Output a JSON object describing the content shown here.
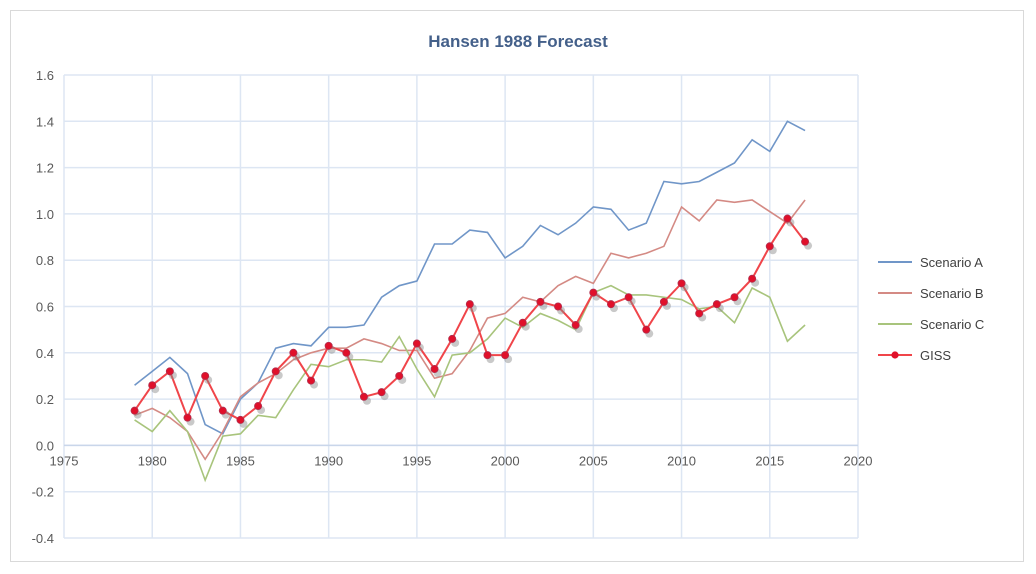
{
  "chart_data": {
    "type": "line",
    "title": "Hansen 1988 Forecast",
    "xlabel": "",
    "ylabel": "",
    "xlim": [
      1975,
      2020
    ],
    "ylim": [
      -0.4,
      1.6
    ],
    "xticks": [
      1975,
      1980,
      1985,
      1990,
      1995,
      2000,
      2005,
      2010,
      2015,
      2020
    ],
    "yticks": [
      "-0.4",
      "-0.2",
      "0.0",
      "0.2",
      "0.4",
      "0.6",
      "0.8",
      "1.0",
      "1.2",
      "1.4",
      "1.6"
    ],
    "grid": true,
    "legend_position": "right",
    "x": [
      1979,
      1980,
      1981,
      1982,
      1983,
      1984,
      1985,
      1986,
      1987,
      1988,
      1989,
      1990,
      1991,
      1992,
      1993,
      1994,
      1995,
      1996,
      1997,
      1998,
      1999,
      2000,
      2001,
      2002,
      2003,
      2004,
      2005,
      2006,
      2007,
      2008,
      2009,
      2010,
      2011,
      2012,
      2013,
      2014,
      2015,
      2016,
      2017
    ],
    "series": [
      {
        "name": "Scenario A",
        "color": "#7096c8",
        "markers": false,
        "values": [
          0.26,
          0.32,
          0.38,
          0.31,
          0.09,
          0.05,
          0.2,
          0.27,
          0.42,
          0.44,
          0.43,
          0.51,
          0.51,
          0.52,
          0.64,
          0.69,
          0.71,
          0.87,
          0.87,
          0.93,
          0.92,
          0.81,
          0.86,
          0.95,
          0.91,
          0.96,
          1.03,
          1.02,
          0.93,
          0.96,
          1.14,
          1.13,
          1.14,
          1.18,
          1.22,
          1.32,
          1.27,
          1.4,
          1.36
        ]
      },
      {
        "name": "Scenario B",
        "color": "#d48a84",
        "markers": false,
        "values": [
          0.13,
          0.16,
          0.12,
          0.06,
          -0.06,
          0.06,
          0.21,
          0.27,
          0.31,
          0.37,
          0.4,
          0.42,
          0.42,
          0.46,
          0.44,
          0.41,
          0.41,
          0.29,
          0.31,
          0.41,
          0.55,
          0.57,
          0.64,
          0.62,
          0.69,
          0.73,
          0.7,
          0.83,
          0.81,
          0.83,
          0.86,
          1.03,
          0.97,
          1.06,
          1.05,
          1.06,
          1.01,
          0.96,
          1.06
        ]
      },
      {
        "name": "Scenario C",
        "color": "#a8c47c",
        "markers": false,
        "values": [
          0.11,
          0.06,
          0.15,
          0.06,
          -0.15,
          0.04,
          0.05,
          0.13,
          0.12,
          0.24,
          0.35,
          0.34,
          0.37,
          0.37,
          0.36,
          0.47,
          0.33,
          0.21,
          0.39,
          0.4,
          0.46,
          0.55,
          0.51,
          0.57,
          0.54,
          0.5,
          0.66,
          0.69,
          0.65,
          0.65,
          0.64,
          0.63,
          0.59,
          0.6,
          0.53,
          0.68,
          0.64,
          0.45,
          0.52
        ]
      },
      {
        "name": "GISS",
        "color": "#f0454a",
        "markers": true,
        "values": [
          0.15,
          0.26,
          0.32,
          0.12,
          0.3,
          0.15,
          0.11,
          0.17,
          0.32,
          0.4,
          0.28,
          0.43,
          0.4,
          0.21,
          0.23,
          0.3,
          0.44,
          0.33,
          0.46,
          0.61,
          0.39,
          0.39,
          0.53,
          0.62,
          0.6,
          0.52,
          0.66,
          0.61,
          0.64,
          0.5,
          0.62,
          0.7,
          0.57,
          0.61,
          0.64,
          0.72,
          0.86,
          0.98,
          0.88
        ]
      }
    ]
  }
}
